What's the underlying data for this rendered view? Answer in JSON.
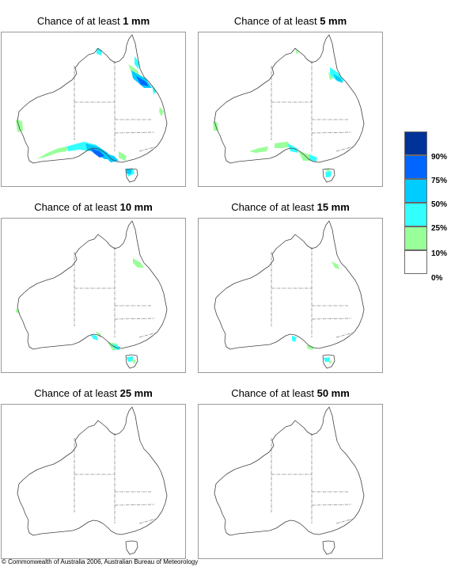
{
  "panels": [
    {
      "prefix": "Chance of at least ",
      "amount": "1 mm"
    },
    {
      "prefix": "Chance of at least ",
      "amount": "5 mm"
    },
    {
      "prefix": "Chance of at least ",
      "amount": "10 mm"
    },
    {
      "prefix": "Chance of at least ",
      "amount": "15 mm"
    },
    {
      "prefix": "Chance of at least ",
      "amount": "25 mm"
    },
    {
      "prefix": "Chance of at least ",
      "amount": "50 mm"
    }
  ],
  "legend": {
    "labels": [
      "90%",
      "75%",
      "50%",
      "25%",
      "10%",
      "0%"
    ],
    "colors": [
      "#003399",
      "#0066ff",
      "#00ccff",
      "#33ffff",
      "#99ff99",
      "#ffffff"
    ]
  },
  "copyright": "© Commonwealth of Australia 2006, Australian Bureau of Meteorology"
}
